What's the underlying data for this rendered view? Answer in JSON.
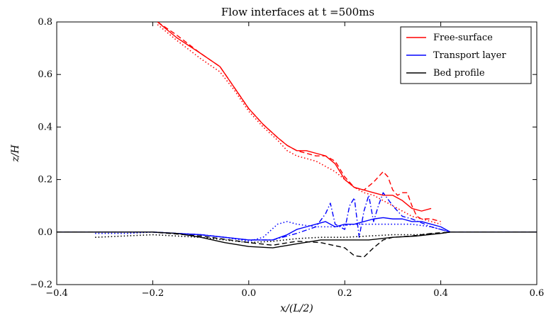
{
  "chart_data": {
    "type": "line",
    "title": "Flow interfaces at t =500ms",
    "xlabel": "x/(L/2)",
    "ylabel": "z/H",
    "xlim": [
      -0.4,
      0.6
    ],
    "ylim": [
      -0.2,
      0.8
    ],
    "xticks": [
      "−0.4",
      "−0.2",
      "0.0",
      "0.2",
      "0.4",
      "0.6"
    ],
    "yticks": [
      "−0.2",
      "0.0",
      "0.2",
      "0.4",
      "0.6",
      "0.8"
    ],
    "xtick_values": [
      -0.4,
      -0.2,
      0.0,
      0.2,
      0.4,
      0.6
    ],
    "ytick_values": [
      -0.2,
      0.0,
      0.2,
      0.4,
      0.6,
      0.8
    ],
    "grid": false,
    "legend_position": "top-right",
    "colors": {
      "free_surface": "#ff0000",
      "transport_layer": "#0000ff",
      "bed_profile": "#000000"
    },
    "legend": [
      {
        "name": "Free-surface",
        "color": "#ff0000"
      },
      {
        "name": "Transport layer",
        "color": "#0000ff"
      },
      {
        "name": "Bed profile",
        "color": "#000000"
      }
    ],
    "series": [
      {
        "group": "Free-surface",
        "style": "solid",
        "color": "#ff0000",
        "x": [
          -0.19,
          -0.15,
          -0.1,
          -0.06,
          -0.03,
          0.0,
          0.03,
          0.06,
          0.08,
          0.1,
          0.12,
          0.14,
          0.16,
          0.18,
          0.2,
          0.22,
          0.24,
          0.26,
          0.28,
          0.3,
          0.32,
          0.34,
          0.36,
          0.38
        ],
        "y": [
          0.8,
          0.74,
          0.68,
          0.63,
          0.55,
          0.47,
          0.41,
          0.36,
          0.33,
          0.31,
          0.31,
          0.3,
          0.29,
          0.26,
          0.2,
          0.17,
          0.16,
          0.15,
          0.14,
          0.14,
          0.12,
          0.09,
          0.08,
          0.09
        ]
      },
      {
        "group": "Free-surface",
        "style": "dashed",
        "color": "#ff0000",
        "x": [
          -0.19,
          -0.15,
          -0.1,
          -0.06,
          -0.03,
          0.0,
          0.03,
          0.06,
          0.08,
          0.1,
          0.12,
          0.14,
          0.16,
          0.18,
          0.2,
          0.22,
          0.24,
          0.26,
          0.28,
          0.29,
          0.3,
          0.31,
          0.32,
          0.33,
          0.34,
          0.35,
          0.36,
          0.38,
          0.4
        ],
        "y": [
          0.8,
          0.75,
          0.68,
          0.63,
          0.55,
          0.47,
          0.41,
          0.36,
          0.33,
          0.31,
          0.3,
          0.29,
          0.29,
          0.27,
          0.21,
          0.17,
          0.16,
          0.19,
          0.23,
          0.21,
          0.16,
          0.14,
          0.15,
          0.15,
          0.1,
          0.06,
          0.05,
          0.05,
          0.04
        ]
      },
      {
        "group": "Free-surface",
        "style": "dotted",
        "color": "#ff0000",
        "x": [
          -0.19,
          -0.15,
          -0.1,
          -0.06,
          -0.03,
          0.0,
          0.03,
          0.06,
          0.08,
          0.1,
          0.12,
          0.14,
          0.16,
          0.18,
          0.2,
          0.22,
          0.24,
          0.26,
          0.28,
          0.3,
          0.32,
          0.34,
          0.36,
          0.38,
          0.4
        ],
        "y": [
          0.79,
          0.73,
          0.66,
          0.61,
          0.54,
          0.46,
          0.4,
          0.35,
          0.31,
          0.29,
          0.28,
          0.27,
          0.25,
          0.23,
          0.2,
          0.17,
          0.15,
          0.14,
          0.12,
          0.1,
          0.08,
          0.06,
          0.05,
          0.04,
          0.03
        ]
      },
      {
        "group": "Transport layer",
        "style": "solid",
        "color": "#0000ff",
        "x": [
          -0.4,
          -0.2,
          -0.15,
          -0.1,
          -0.05,
          0.0,
          0.05,
          0.08,
          0.1,
          0.12,
          0.14,
          0.16,
          0.18,
          0.2,
          0.22,
          0.24,
          0.26,
          0.28,
          0.3,
          0.32,
          0.34,
          0.36,
          0.38,
          0.4,
          0.42,
          0.6
        ],
        "y": [
          0.0,
          0.0,
          -0.005,
          -0.01,
          -0.02,
          -0.03,
          -0.03,
          -0.01,
          0.01,
          0.02,
          0.03,
          0.04,
          0.02,
          0.03,
          0.03,
          0.04,
          0.05,
          0.055,
          0.05,
          0.05,
          0.04,
          0.04,
          0.03,
          0.02,
          0.0,
          0.0
        ]
      },
      {
        "group": "Transport layer",
        "style": "dashdot",
        "color": "#0000ff",
        "x": [
          -0.4,
          -0.2,
          -0.15,
          -0.1,
          -0.05,
          0.0,
          0.05,
          0.1,
          0.14,
          0.16,
          0.17,
          0.18,
          0.2,
          0.21,
          0.22,
          0.23,
          0.24,
          0.25,
          0.26,
          0.27,
          0.28,
          0.3,
          0.32,
          0.34,
          0.38,
          0.42,
          0.6
        ],
        "y": [
          0.0,
          0.0,
          -0.005,
          -0.01,
          -0.02,
          -0.03,
          -0.03,
          -0.005,
          0.02,
          0.07,
          0.11,
          0.03,
          0.01,
          0.1,
          0.13,
          -0.02,
          0.08,
          0.14,
          0.04,
          0.1,
          0.15,
          0.1,
          0.06,
          0.05,
          0.02,
          0.0,
          0.0
        ]
      },
      {
        "group": "Transport layer",
        "style": "dotted",
        "color": "#0000ff",
        "x": [
          -0.32,
          -0.25,
          -0.2,
          -0.15,
          -0.1,
          -0.05,
          0.0,
          0.03,
          0.06,
          0.08,
          0.1,
          0.14,
          0.18,
          0.22,
          0.26,
          0.3,
          0.34,
          0.38,
          0.42
        ],
        "y": [
          -0.005,
          -0.005,
          0.0,
          -0.005,
          -0.01,
          -0.02,
          -0.035,
          -0.02,
          0.03,
          0.04,
          0.03,
          0.02,
          0.02,
          0.03,
          0.03,
          0.03,
          0.03,
          0.02,
          0.0
        ]
      },
      {
        "group": "Bed profile",
        "style": "solid",
        "color": "#000000",
        "x": [
          -0.4,
          -0.2,
          -0.15,
          -0.1,
          -0.05,
          0.0,
          0.05,
          0.1,
          0.15,
          0.2,
          0.25,
          0.3,
          0.35,
          0.4,
          0.42,
          0.6
        ],
        "y": [
          0.0,
          0.0,
          -0.005,
          -0.02,
          -0.04,
          -0.055,
          -0.06,
          -0.045,
          -0.03,
          -0.03,
          -0.03,
          -0.02,
          -0.015,
          -0.005,
          0.0,
          0.0
        ]
      },
      {
        "group": "Bed profile",
        "style": "dashed",
        "color": "#000000",
        "x": [
          -0.4,
          -0.2,
          -0.1,
          0.0,
          0.05,
          0.1,
          0.15,
          0.2,
          0.22,
          0.24,
          0.26,
          0.28,
          0.3,
          0.34,
          0.38,
          0.42,
          0.6
        ],
        "y": [
          0.0,
          0.0,
          -0.015,
          -0.04,
          -0.05,
          -0.035,
          -0.04,
          -0.06,
          -0.09,
          -0.095,
          -0.06,
          -0.03,
          -0.02,
          -0.015,
          -0.005,
          0.0,
          0.0
        ]
      },
      {
        "group": "Bed profile",
        "style": "dotted",
        "color": "#000000",
        "x": [
          -0.32,
          -0.2,
          -0.1,
          0.0,
          0.05,
          0.1,
          0.15,
          0.2,
          0.25,
          0.3,
          0.35,
          0.4,
          0.42
        ],
        "y": [
          -0.02,
          -0.01,
          -0.02,
          -0.04,
          -0.035,
          -0.025,
          -0.02,
          -0.02,
          -0.015,
          -0.01,
          -0.01,
          -0.005,
          0.0
        ]
      }
    ]
  }
}
